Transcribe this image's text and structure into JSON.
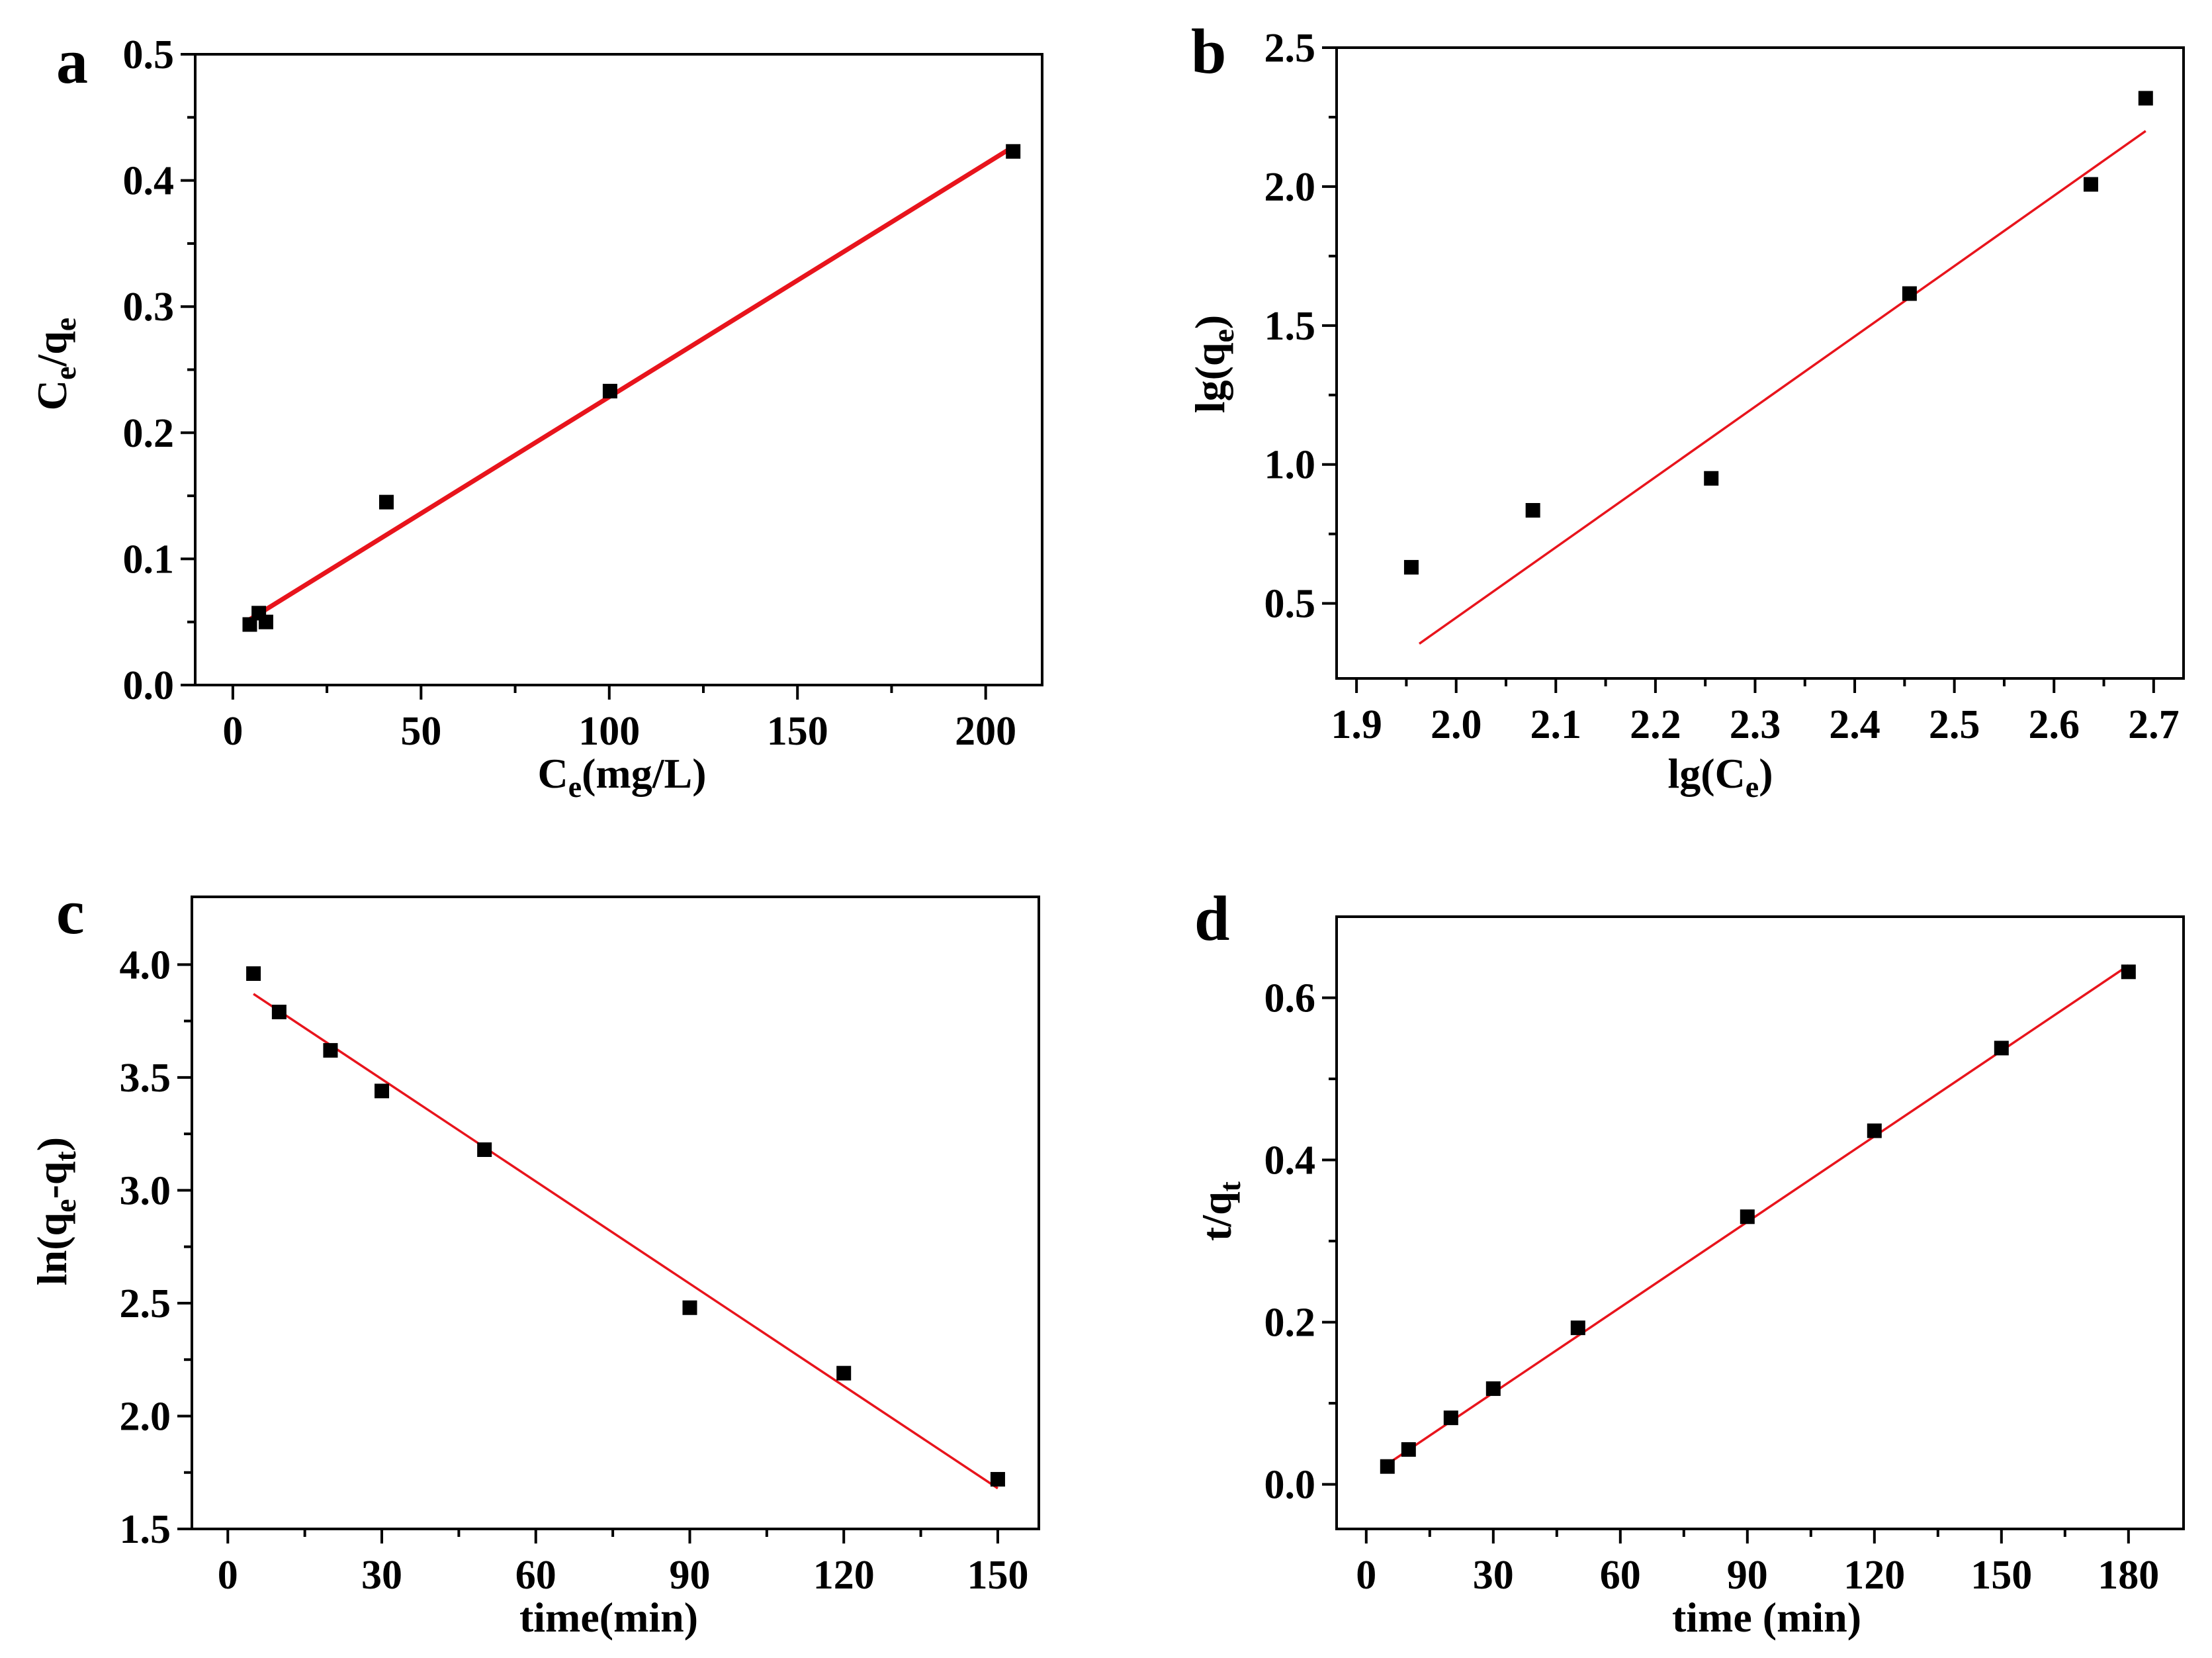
{
  "figure": {
    "panel_count": 4
  },
  "chart_data": [
    {
      "id": "a",
      "panel_label": "a",
      "type": "scatter",
      "xlabel": {
        "main": "C",
        "sub": "e",
        "tail": "(mg/L)"
      },
      "ylabel": {
        "main": "C",
        "sub": "e",
        "tail": "/q",
        "sub2": "e"
      },
      "xlim": [
        -10,
        215
      ],
      "ylim": [
        0,
        0.5
      ],
      "xticks": [
        0,
        50,
        100,
        150,
        200
      ],
      "xtick_labels": [
        "0",
        "50",
        "100",
        "150",
        "200"
      ],
      "yticks": [
        0,
        0.1,
        0.2,
        0.3,
        0.4,
        0.5
      ],
      "ytick_labels": [
        "0.0",
        "0.1",
        "0.2",
        "0.3",
        "0.4",
        "0.5"
      ],
      "points": {
        "x": [
          4.5,
          6.9,
          8.8,
          40.8,
          100.2,
          207.3
        ],
        "y": [
          0.048,
          0.057,
          0.05,
          0.145,
          0.233,
          0.423
        ]
      },
      "fit_line": {
        "x": [
          4.5,
          207.5
        ],
        "y": [
          0.052,
          0.427
        ],
        "color": "#e8141c",
        "heavy": true
      },
      "marker_color": "#000000",
      "grid": false
    },
    {
      "id": "b",
      "panel_label": "b",
      "type": "scatter",
      "xlabel": {
        "main": "lg(C",
        "sub": "e",
        "tail": ")"
      },
      "ylabel": {
        "main": "lg(q",
        "sub": "e",
        "tail": ")"
      },
      "xlim": [
        1.88,
        2.73
      ],
      "ylim": [
        0.23,
        2.5
      ],
      "xticks": [
        1.9,
        2.0,
        2.1,
        2.2,
        2.3,
        2.4,
        2.5,
        2.6,
        2.7
      ],
      "xtick_labels": [
        "1.9",
        "2.0",
        "2.1",
        "2.2",
        "2.3",
        "2.4",
        "2.5",
        "2.6",
        "2.7"
      ],
      "yticks": [
        0.5,
        1.0,
        1.5,
        2.0,
        2.5
      ],
      "ytick_labels": [
        "0.5",
        "1.0",
        "1.5",
        "2.0",
        "2.5"
      ],
      "points": {
        "x": [
          1.955,
          2.077,
          2.256,
          2.455,
          2.637,
          2.692
        ],
        "y": [
          0.63,
          0.835,
          0.95,
          1.615,
          2.008,
          2.318
        ]
      },
      "fit_line": {
        "x": [
          1.963,
          2.692
        ],
        "y": [
          0.355,
          2.2
        ],
        "color": "#e8141c",
        "heavy": false
      },
      "marker_color": "#000000",
      "grid": false
    },
    {
      "id": "c",
      "panel_label": "c",
      "type": "scatter",
      "xlabel": {
        "main": "time(min)"
      },
      "ylabel": {
        "main": "ln(q",
        "sub": "e",
        "tail": "-q",
        "sub2": "t",
        "tail2": ")"
      },
      "xlim": [
        -7,
        158
      ],
      "ylim": [
        1.5,
        4.3
      ],
      "xticks": [
        0,
        30,
        60,
        90,
        120,
        150
      ],
      "xtick_labels": [
        "0",
        "30",
        "60",
        "90",
        "120",
        "150"
      ],
      "yticks": [
        1.5,
        2.0,
        2.5,
        3.0,
        3.5,
        4.0
      ],
      "ytick_labels": [
        "1.5",
        "2.0",
        "2.5",
        "3.0",
        "3.5",
        "4.0"
      ],
      "points": {
        "x": [
          5,
          10,
          20,
          30,
          50,
          90,
          120,
          150
        ],
        "y": [
          3.96,
          3.79,
          3.62,
          3.44,
          3.18,
          2.48,
          2.19,
          1.72
        ]
      },
      "fit_line": {
        "x": [
          5,
          150
        ],
        "y": [
          3.87,
          1.68
        ],
        "color": "#e8141c",
        "heavy": false
      },
      "marker_color": "#000000",
      "grid": false
    },
    {
      "id": "d",
      "panel_label": "d",
      "type": "scatter",
      "xlabel": {
        "main": "time (min)"
      },
      "ylabel": {
        "main": "t/q",
        "sub": "t"
      },
      "xlim": [
        -7,
        193
      ],
      "ylim": [
        -0.055,
        0.7
      ],
      "xticks": [
        0,
        30,
        60,
        90,
        120,
        150,
        180
      ],
      "xtick_labels": [
        "0",
        "30",
        "60",
        "90",
        "120",
        "150",
        "180"
      ],
      "yticks": [
        0,
        0.2,
        0.4,
        0.6
      ],
      "ytick_labels": [
        "0.0",
        "0.2",
        "0.4",
        "0.6"
      ],
      "points": {
        "x": [
          5,
          10,
          20,
          30,
          50,
          90,
          120,
          150,
          180
        ],
        "y": [
          0.022,
          0.043,
          0.082,
          0.118,
          0.193,
          0.33,
          0.436,
          0.538,
          0.632
        ]
      },
      "fit_line": {
        "x": [
          5,
          180
        ],
        "y": [
          0.025,
          0.64
        ],
        "color": "#e8141c",
        "heavy": false
      },
      "marker_color": "#000000",
      "grid": false
    }
  ]
}
